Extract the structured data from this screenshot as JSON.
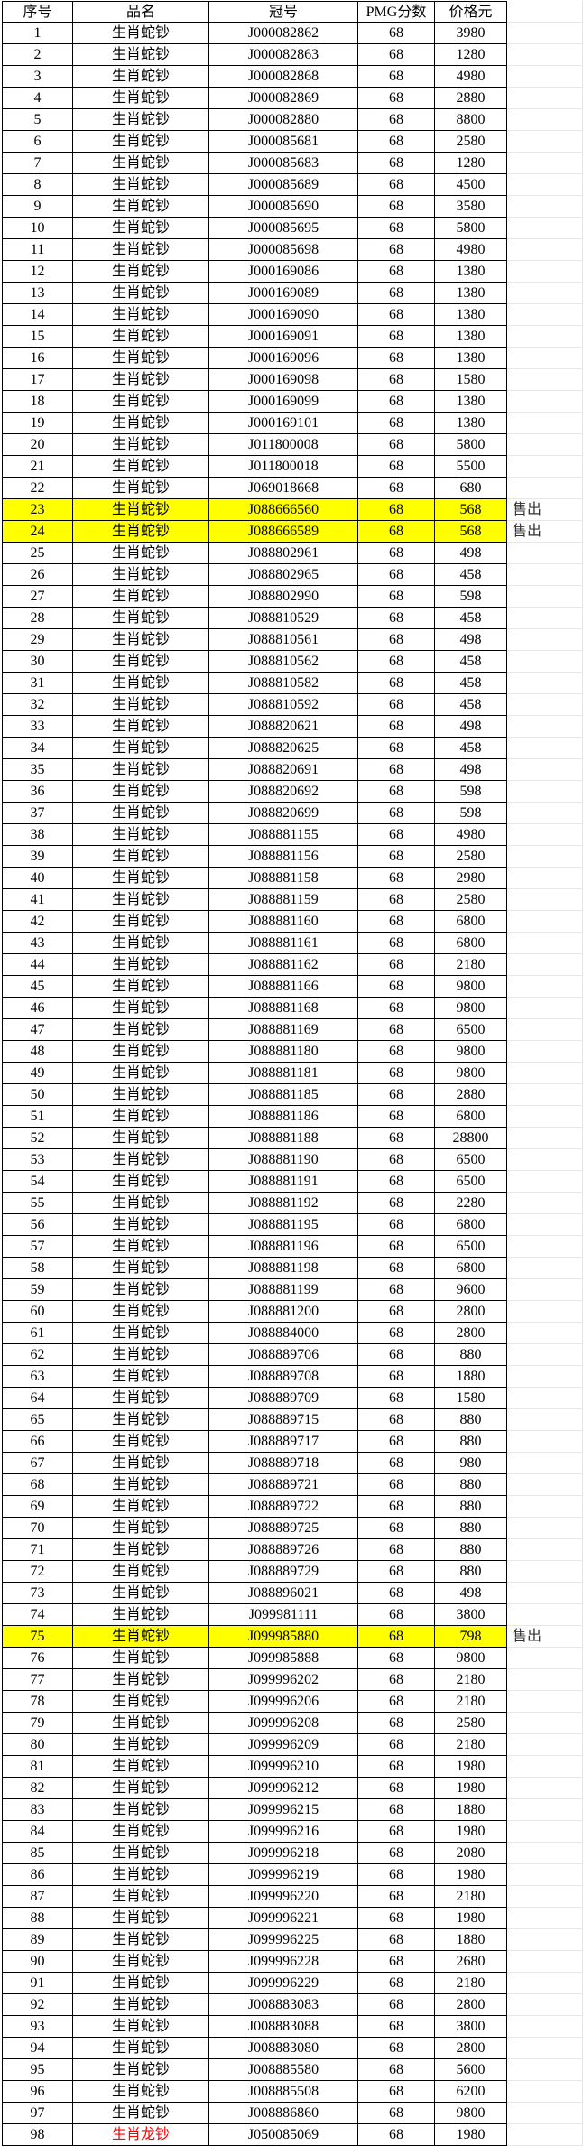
{
  "table": {
    "columns": [
      "序号",
      "品名",
      "冠号",
      "PMG分数",
      "价格元"
    ],
    "sold_label": "售出",
    "colors": {
      "highlight": "#FFFF00",
      "red_text": "#FF0000",
      "border": "#000000",
      "gridline": "#E7E7E7",
      "sold_text": "#333333"
    },
    "rows": [
      {
        "no": "1",
        "name": "生肖蛇钞",
        "serial": "J000082862",
        "score": "68",
        "price": "3980"
      },
      {
        "no": "2",
        "name": "生肖蛇钞",
        "serial": "J000082863",
        "score": "68",
        "price": "1280"
      },
      {
        "no": "3",
        "name": "生肖蛇钞",
        "serial": "J000082868",
        "score": "68",
        "price": "4980"
      },
      {
        "no": "4",
        "name": "生肖蛇钞",
        "serial": "J000082869",
        "score": "68",
        "price": "2880"
      },
      {
        "no": "5",
        "name": "生肖蛇钞",
        "serial": "J000082880",
        "score": "68",
        "price": "8800"
      },
      {
        "no": "6",
        "name": "生肖蛇钞",
        "serial": "J000085681",
        "score": "68",
        "price": "2580"
      },
      {
        "no": "7",
        "name": "生肖蛇钞",
        "serial": "J000085683",
        "score": "68",
        "price": "1280"
      },
      {
        "no": "8",
        "name": "生肖蛇钞",
        "serial": "J000085689",
        "score": "68",
        "price": "4500"
      },
      {
        "no": "9",
        "name": "生肖蛇钞",
        "serial": "J000085690",
        "score": "68",
        "price": "3580"
      },
      {
        "no": "10",
        "name": "生肖蛇钞",
        "serial": "J000085695",
        "score": "68",
        "price": "5800"
      },
      {
        "no": "11",
        "name": "生肖蛇钞",
        "serial": "J000085698",
        "score": "68",
        "price": "4980"
      },
      {
        "no": "12",
        "name": "生肖蛇钞",
        "serial": "J000169086",
        "score": "68",
        "price": "1380"
      },
      {
        "no": "13",
        "name": "生肖蛇钞",
        "serial": "J000169089",
        "score": "68",
        "price": "1380"
      },
      {
        "no": "14",
        "name": "生肖蛇钞",
        "serial": "J000169090",
        "score": "68",
        "price": "1380"
      },
      {
        "no": "15",
        "name": "生肖蛇钞",
        "serial": "J000169091",
        "score": "68",
        "price": "1380"
      },
      {
        "no": "16",
        "name": "生肖蛇钞",
        "serial": "J000169096",
        "score": "68",
        "price": "1380"
      },
      {
        "no": "17",
        "name": "生肖蛇钞",
        "serial": "J000169098",
        "score": "68",
        "price": "1580"
      },
      {
        "no": "18",
        "name": "生肖蛇钞",
        "serial": "J000169099",
        "score": "68",
        "price": "1380"
      },
      {
        "no": "19",
        "name": "生肖蛇钞",
        "serial": "J000169101",
        "score": "68",
        "price": "1380"
      },
      {
        "no": "20",
        "name": "生肖蛇钞",
        "serial": "J011800008",
        "score": "68",
        "price": "5800"
      },
      {
        "no": "21",
        "name": "生肖蛇钞",
        "serial": "J011800018",
        "score": "68",
        "price": "5500"
      },
      {
        "no": "22",
        "name": "生肖蛇钞",
        "serial": "J069018668",
        "score": "68",
        "price": "680"
      },
      {
        "no": "23",
        "name": "生肖蛇钞",
        "serial": "J088666560",
        "score": "68",
        "price": "568",
        "sold": true
      },
      {
        "no": "24",
        "name": "生肖蛇钞",
        "serial": "J088666589",
        "score": "68",
        "price": "568",
        "sold": true
      },
      {
        "no": "25",
        "name": "生肖蛇钞",
        "serial": "J088802961",
        "score": "68",
        "price": "498"
      },
      {
        "no": "26",
        "name": "生肖蛇钞",
        "serial": "J088802965",
        "score": "68",
        "price": "458"
      },
      {
        "no": "27",
        "name": "生肖蛇钞",
        "serial": "J088802990",
        "score": "68",
        "price": "598"
      },
      {
        "no": "28",
        "name": "生肖蛇钞",
        "serial": "J088810529",
        "score": "68",
        "price": "458"
      },
      {
        "no": "29",
        "name": "生肖蛇钞",
        "serial": "J088810561",
        "score": "68",
        "price": "498"
      },
      {
        "no": "30",
        "name": "生肖蛇钞",
        "serial": "J088810562",
        "score": "68",
        "price": "458"
      },
      {
        "no": "31",
        "name": "生肖蛇钞",
        "serial": "J088810582",
        "score": "68",
        "price": "458"
      },
      {
        "no": "32",
        "name": "生肖蛇钞",
        "serial": "J088810592",
        "score": "68",
        "price": "458"
      },
      {
        "no": "33",
        "name": "生肖蛇钞",
        "serial": "J088820621",
        "score": "68",
        "price": "498"
      },
      {
        "no": "34",
        "name": "生肖蛇钞",
        "serial": "J088820625",
        "score": "68",
        "price": "458"
      },
      {
        "no": "35",
        "name": "生肖蛇钞",
        "serial": "J088820691",
        "score": "68",
        "price": "498"
      },
      {
        "no": "36",
        "name": "生肖蛇钞",
        "serial": "J088820692",
        "score": "68",
        "price": "598"
      },
      {
        "no": "37",
        "name": "生肖蛇钞",
        "serial": "J088820699",
        "score": "68",
        "price": "598"
      },
      {
        "no": "38",
        "name": "生肖蛇钞",
        "serial": "J088881155",
        "score": "68",
        "price": "4980"
      },
      {
        "no": "39",
        "name": "生肖蛇钞",
        "serial": "J088881156",
        "score": "68",
        "price": "2580"
      },
      {
        "no": "40",
        "name": "生肖蛇钞",
        "serial": "J088881158",
        "score": "68",
        "price": "2980"
      },
      {
        "no": "41",
        "name": "生肖蛇钞",
        "serial": "J088881159",
        "score": "68",
        "price": "2580"
      },
      {
        "no": "42",
        "name": "生肖蛇钞",
        "serial": "J088881160",
        "score": "68",
        "price": "6800"
      },
      {
        "no": "43",
        "name": "生肖蛇钞",
        "serial": "J088881161",
        "score": "68",
        "price": "6800"
      },
      {
        "no": "44",
        "name": "生肖蛇钞",
        "serial": "J088881162",
        "score": "68",
        "price": "2180"
      },
      {
        "no": "45",
        "name": "生肖蛇钞",
        "serial": "J088881166",
        "score": "68",
        "price": "9800"
      },
      {
        "no": "46",
        "name": "生肖蛇钞",
        "serial": "J088881168",
        "score": "68",
        "price": "9800"
      },
      {
        "no": "47",
        "name": "生肖蛇钞",
        "serial": "J088881169",
        "score": "68",
        "price": "6500"
      },
      {
        "no": "48",
        "name": "生肖蛇钞",
        "serial": "J088881180",
        "score": "68",
        "price": "9800"
      },
      {
        "no": "49",
        "name": "生肖蛇钞",
        "serial": "J088881181",
        "score": "68",
        "price": "9800"
      },
      {
        "no": "50",
        "name": "生肖蛇钞",
        "serial": "J088881185",
        "score": "68",
        "price": "2880"
      },
      {
        "no": "51",
        "name": "生肖蛇钞",
        "serial": "J088881186",
        "score": "68",
        "price": "6800"
      },
      {
        "no": "52",
        "name": "生肖蛇钞",
        "serial": "J088881188",
        "score": "68",
        "price": "28800"
      },
      {
        "no": "53",
        "name": "生肖蛇钞",
        "serial": "J088881190",
        "score": "68",
        "price": "6500"
      },
      {
        "no": "54",
        "name": "生肖蛇钞",
        "serial": "J088881191",
        "score": "68",
        "price": "6500"
      },
      {
        "no": "55",
        "name": "生肖蛇钞",
        "serial": "J088881192",
        "score": "68",
        "price": "2280"
      },
      {
        "no": "56",
        "name": "生肖蛇钞",
        "serial": "J088881195",
        "score": "68",
        "price": "6800"
      },
      {
        "no": "57",
        "name": "生肖蛇钞",
        "serial": "J088881196",
        "score": "68",
        "price": "6500"
      },
      {
        "no": "58",
        "name": "生肖蛇钞",
        "serial": "J088881198",
        "score": "68",
        "price": "6800"
      },
      {
        "no": "59",
        "name": "生肖蛇钞",
        "serial": "J088881199",
        "score": "68",
        "price": "9600"
      },
      {
        "no": "60",
        "name": "生肖蛇钞",
        "serial": "J088881200",
        "score": "68",
        "price": "2800"
      },
      {
        "no": "61",
        "name": "生肖蛇钞",
        "serial": "J088884000",
        "score": "68",
        "price": "2800"
      },
      {
        "no": "62",
        "name": "生肖蛇钞",
        "serial": "J088889706",
        "score": "68",
        "price": "880"
      },
      {
        "no": "63",
        "name": "生肖蛇钞",
        "serial": "J088889708",
        "score": "68",
        "price": "1880"
      },
      {
        "no": "64",
        "name": "生肖蛇钞",
        "serial": "J088889709",
        "score": "68",
        "price": "1580"
      },
      {
        "no": "65",
        "name": "生肖蛇钞",
        "serial": "J088889715",
        "score": "68",
        "price": "880"
      },
      {
        "no": "66",
        "name": "生肖蛇钞",
        "serial": "J088889717",
        "score": "68",
        "price": "880"
      },
      {
        "no": "67",
        "name": "生肖蛇钞",
        "serial": "J088889718",
        "score": "68",
        "price": "980"
      },
      {
        "no": "68",
        "name": "生肖蛇钞",
        "serial": "J088889721",
        "score": "68",
        "price": "880"
      },
      {
        "no": "69",
        "name": "生肖蛇钞",
        "serial": "J088889722",
        "score": "68",
        "price": "880"
      },
      {
        "no": "70",
        "name": "生肖蛇钞",
        "serial": "J088889725",
        "score": "68",
        "price": "880"
      },
      {
        "no": "71",
        "name": "生肖蛇钞",
        "serial": "J088889726",
        "score": "68",
        "price": "880"
      },
      {
        "no": "72",
        "name": "生肖蛇钞",
        "serial": "J088889729",
        "score": "68",
        "price": "880"
      },
      {
        "no": "73",
        "name": "生肖蛇钞",
        "serial": "J088896021",
        "score": "68",
        "price": "498"
      },
      {
        "no": "74",
        "name": "生肖蛇钞",
        "serial": "J099981111",
        "score": "68",
        "price": "3800"
      },
      {
        "no": "75",
        "name": "生肖蛇钞",
        "serial": "J099985880",
        "score": "68",
        "price": "798",
        "sold": true
      },
      {
        "no": "76",
        "name": "生肖蛇钞",
        "serial": "J099985888",
        "score": "68",
        "price": "9800"
      },
      {
        "no": "77",
        "name": "生肖蛇钞",
        "serial": "J099996202",
        "score": "68",
        "price": "2180"
      },
      {
        "no": "78",
        "name": "生肖蛇钞",
        "serial": "J099996206",
        "score": "68",
        "price": "2180"
      },
      {
        "no": "79",
        "name": "生肖蛇钞",
        "serial": "J099996208",
        "score": "68",
        "price": "2580"
      },
      {
        "no": "80",
        "name": "生肖蛇钞",
        "serial": "J099996209",
        "score": "68",
        "price": "2180"
      },
      {
        "no": "81",
        "name": "生肖蛇钞",
        "serial": "J099996210",
        "score": "68",
        "price": "1980"
      },
      {
        "no": "82",
        "name": "生肖蛇钞",
        "serial": "J099996212",
        "score": "68",
        "price": "1980"
      },
      {
        "no": "83",
        "name": "生肖蛇钞",
        "serial": "J099996215",
        "score": "68",
        "price": "1880"
      },
      {
        "no": "84",
        "name": "生肖蛇钞",
        "serial": "J099996216",
        "score": "68",
        "price": "1980"
      },
      {
        "no": "85",
        "name": "生肖蛇钞",
        "serial": "J099996218",
        "score": "68",
        "price": "2080"
      },
      {
        "no": "86",
        "name": "生肖蛇钞",
        "serial": "J099996219",
        "score": "68",
        "price": "1980"
      },
      {
        "no": "87",
        "name": "生肖蛇钞",
        "serial": "J099996220",
        "score": "68",
        "price": "2180"
      },
      {
        "no": "88",
        "name": "生肖蛇钞",
        "serial": "J099996221",
        "score": "68",
        "price": "1980"
      },
      {
        "no": "89",
        "name": "生肖蛇钞",
        "serial": "J099996225",
        "score": "68",
        "price": "1880"
      },
      {
        "no": "90",
        "name": "生肖蛇钞",
        "serial": "J099996228",
        "score": "68",
        "price": "2680"
      },
      {
        "no": "91",
        "name": "生肖蛇钞",
        "serial": "J099996229",
        "score": "68",
        "price": "2180"
      },
      {
        "no": "92",
        "name": "生肖蛇钞",
        "serial": "J008883083",
        "score": "68",
        "price": "2800"
      },
      {
        "no": "93",
        "name": "生肖蛇钞",
        "serial": "J008883088",
        "score": "68",
        "price": "3800"
      },
      {
        "no": "94",
        "name": "生肖蛇钞",
        "serial": "J008883080",
        "score": "68",
        "price": "2800"
      },
      {
        "no": "95",
        "name": "生肖蛇钞",
        "serial": "J008885580",
        "score": "68",
        "price": "5600"
      },
      {
        "no": "96",
        "name": "生肖蛇钞",
        "serial": "J008885508",
        "score": "68",
        "price": "6200"
      },
      {
        "no": "97",
        "name": "生肖蛇钞",
        "serial": "J008886860",
        "score": "68",
        "price": "9800"
      },
      {
        "no": "98",
        "name": "生肖龙钞",
        "serial": "J050085069",
        "score": "68",
        "price": "1980",
        "red": true
      }
    ]
  }
}
